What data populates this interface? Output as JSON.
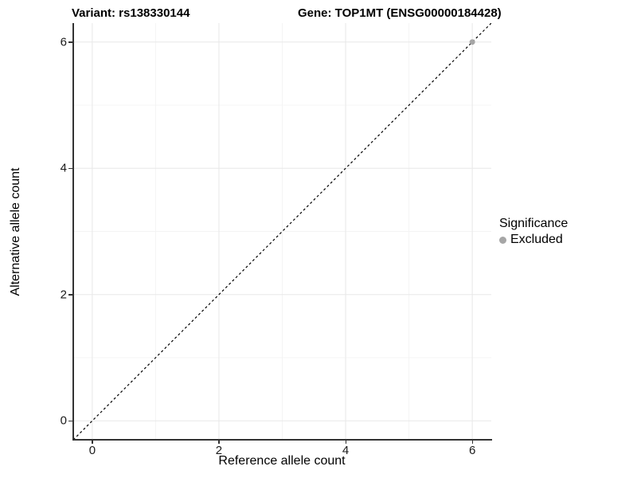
{
  "header": {
    "variant_title": "Variant: rs138330144",
    "gene_title": "Gene: TOP1MT (ENSG00000184428)"
  },
  "axes": {
    "x_label": "Reference allele count",
    "y_label": "Alternative allele count"
  },
  "legend": {
    "title": "Significance",
    "items": [
      {
        "label": "Excluded",
        "color": "#a6a6a6"
      }
    ]
  },
  "chart_data": {
    "type": "scatter",
    "title": "Variant: rs138330144   Gene: TOP1MT (ENSG00000184428)",
    "xlabel": "Reference allele count",
    "ylabel": "Alternative allele count",
    "xlim": [
      -0.3,
      6.3
    ],
    "ylim": [
      -0.3,
      6.3
    ],
    "xticks": [
      0,
      2,
      4,
      6
    ],
    "yticks": [
      0,
      2,
      4,
      6
    ],
    "minor_xticks": [
      1,
      3,
      5
    ],
    "minor_yticks": [
      1,
      3,
      5
    ],
    "grid": "on",
    "legend_position": "right",
    "points": [
      {
        "x": 6,
        "y": 6,
        "significance": "Excluded",
        "color": "#a6a6a6"
      }
    ],
    "reference_line": {
      "type": "identity",
      "slope": 1,
      "intercept": 0,
      "style": "dashed",
      "color": "#000000"
    },
    "colors": {
      "major_grid": "#e8e8e8",
      "minor_grid": "#f4f4f4",
      "axis_line": "#333333",
      "excluded_point": "#a6a6a6"
    }
  }
}
